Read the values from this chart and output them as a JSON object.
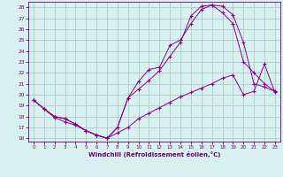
{
  "xlabel": "Windchill (Refroidissement éolien,°C)",
  "xlim": [
    -0.5,
    23.5
  ],
  "ylim": [
    15.7,
    28.5
  ],
  "yticks": [
    16,
    17,
    18,
    19,
    20,
    21,
    22,
    23,
    24,
    25,
    26,
    27,
    28
  ],
  "xticks": [
    0,
    1,
    2,
    3,
    4,
    5,
    6,
    7,
    8,
    9,
    10,
    11,
    12,
    13,
    14,
    15,
    16,
    17,
    18,
    19,
    20,
    21,
    22,
    23
  ],
  "line_color": "#880088",
  "bg_color": "#d8f0f0",
  "grid_color": "#aacccc",
  "line1_x": [
    0,
    1,
    2,
    3,
    4,
    5,
    6,
    7,
    8,
    9,
    10,
    11,
    12,
    13,
    14,
    15,
    16,
    17,
    18,
    19,
    20,
    21,
    22,
    23
  ],
  "line1_y": [
    19.5,
    18.7,
    17.9,
    17.5,
    17.2,
    16.7,
    16.3,
    16.0,
    16.5,
    17.0,
    17.8,
    18.3,
    18.8,
    19.3,
    19.8,
    20.2,
    20.6,
    21.0,
    21.5,
    21.8,
    20.0,
    20.3,
    22.8,
    20.2
  ],
  "line2_x": [
    0,
    1,
    2,
    3,
    4,
    5,
    6,
    7,
    8,
    9,
    10,
    11,
    12,
    13,
    14,
    15,
    16,
    17,
    18,
    19,
    20,
    21,
    22,
    23
  ],
  "line2_y": [
    19.5,
    18.7,
    18.0,
    17.8,
    17.3,
    16.7,
    16.3,
    16.0,
    17.0,
    19.7,
    21.2,
    22.3,
    22.5,
    24.5,
    25.0,
    26.5,
    27.8,
    28.2,
    27.5,
    26.5,
    23.0,
    22.0,
    21.0,
    20.3
  ],
  "line3_x": [
    0,
    1,
    2,
    3,
    4,
    5,
    6,
    7,
    8,
    9,
    10,
    11,
    12,
    13,
    14,
    15,
    16,
    17,
    18,
    19,
    20,
    21,
    22,
    23
  ],
  "line3_y": [
    19.5,
    18.7,
    18.0,
    17.8,
    17.3,
    16.7,
    16.3,
    16.0,
    17.0,
    19.7,
    20.5,
    21.3,
    22.2,
    23.5,
    24.8,
    27.2,
    28.1,
    28.2,
    28.1,
    27.3,
    24.8,
    21.0,
    20.7,
    20.3
  ]
}
